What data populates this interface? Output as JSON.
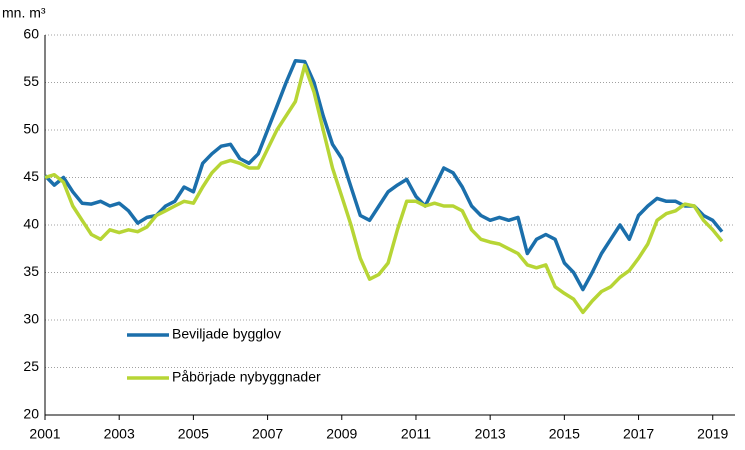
{
  "chart_data": {
    "type": "line",
    "y_label": "mn. m³",
    "x": [
      2001.0,
      2001.25,
      2001.5,
      2001.75,
      2002.0,
      2002.25,
      2002.5,
      2002.75,
      2003.0,
      2003.25,
      2003.5,
      2003.75,
      2004.0,
      2004.25,
      2004.5,
      2004.75,
      2005.0,
      2005.25,
      2005.5,
      2005.75,
      2006.0,
      2006.25,
      2006.5,
      2006.75,
      2007.0,
      2007.25,
      2007.5,
      2007.75,
      2008.0,
      2008.25,
      2008.5,
      2008.75,
      2009.0,
      2009.25,
      2009.5,
      2009.75,
      2010.0,
      2010.25,
      2010.5,
      2010.75,
      2011.0,
      2011.25,
      2011.5,
      2011.75,
      2012.0,
      2012.25,
      2012.5,
      2012.75,
      2013.0,
      2013.25,
      2013.5,
      2013.75,
      2014.0,
      2014.25,
      2014.5,
      2014.75,
      2015.0,
      2015.25,
      2015.5,
      2015.75,
      2016.0,
      2016.25,
      2016.5,
      2016.75,
      2017.0,
      2017.25,
      2017.5,
      2017.75,
      2018.0,
      2018.25,
      2018.5,
      2018.75,
      2019.0,
      2019.25
    ],
    "series": [
      {
        "name": "Beviljade bygglov",
        "color": "#1b6fab",
        "values": [
          45.2,
          44.2,
          45,
          43.5,
          42.3,
          42.2,
          42.5,
          42,
          42.3,
          41.5,
          40.2,
          40.8,
          41,
          42,
          42.5,
          44,
          43.5,
          46.5,
          47.5,
          48.3,
          48.5,
          47,
          46.5,
          47.5,
          50,
          52.5,
          55,
          57.3,
          57.2,
          55,
          51.5,
          48.5,
          47,
          44,
          41,
          40.5,
          42,
          43.5,
          44.2,
          44.8,
          43,
          42,
          44,
          46,
          45.5,
          44,
          42,
          41,
          40.5,
          40.8,
          40.5,
          40.8,
          37,
          38.5,
          39,
          38.5,
          36,
          35,
          33.2,
          35,
          37,
          38.5,
          40,
          38.5,
          41,
          42,
          42.8,
          42.5,
          42.5,
          42,
          42,
          41,
          40.5,
          39.3
        ]
      },
      {
        "name": "Påbörjade nybyggnader",
        "color": "#b7d535",
        "values": [
          45,
          45.3,
          44.5,
          42,
          40.5,
          39,
          38.5,
          39.5,
          39.2,
          39.5,
          39.3,
          39.8,
          41,
          41.5,
          42,
          42.5,
          42.3,
          44,
          45.5,
          46.5,
          46.8,
          46.5,
          46,
          46,
          48,
          50,
          51.5,
          53,
          56.8,
          54,
          50,
          46,
          43,
          40,
          36.5,
          34.3,
          34.8,
          36,
          39.5,
          42.5,
          42.5,
          42,
          42.3,
          42,
          42,
          41.5,
          39.5,
          38.5,
          38.2,
          38,
          37.5,
          37,
          35.8,
          35.5,
          35.8,
          33.5,
          32.8,
          32.2,
          30.8,
          32,
          33,
          33.5,
          34.5,
          35.2,
          36.5,
          38,
          40.5,
          41.2,
          41.5,
          42.2,
          42,
          40.5,
          39.5,
          38.3
        ]
      }
    ],
    "xlim": [
      2001,
      2019.6
    ],
    "xticks": [
      2001,
      2003,
      2005,
      2007,
      2009,
      2011,
      2013,
      2015,
      2017,
      2019
    ],
    "ylim": [
      20,
      60
    ],
    "yticks": [
      20,
      25,
      30,
      35,
      40,
      45,
      50,
      55,
      60
    ],
    "grid": true,
    "legend": "lower left"
  }
}
